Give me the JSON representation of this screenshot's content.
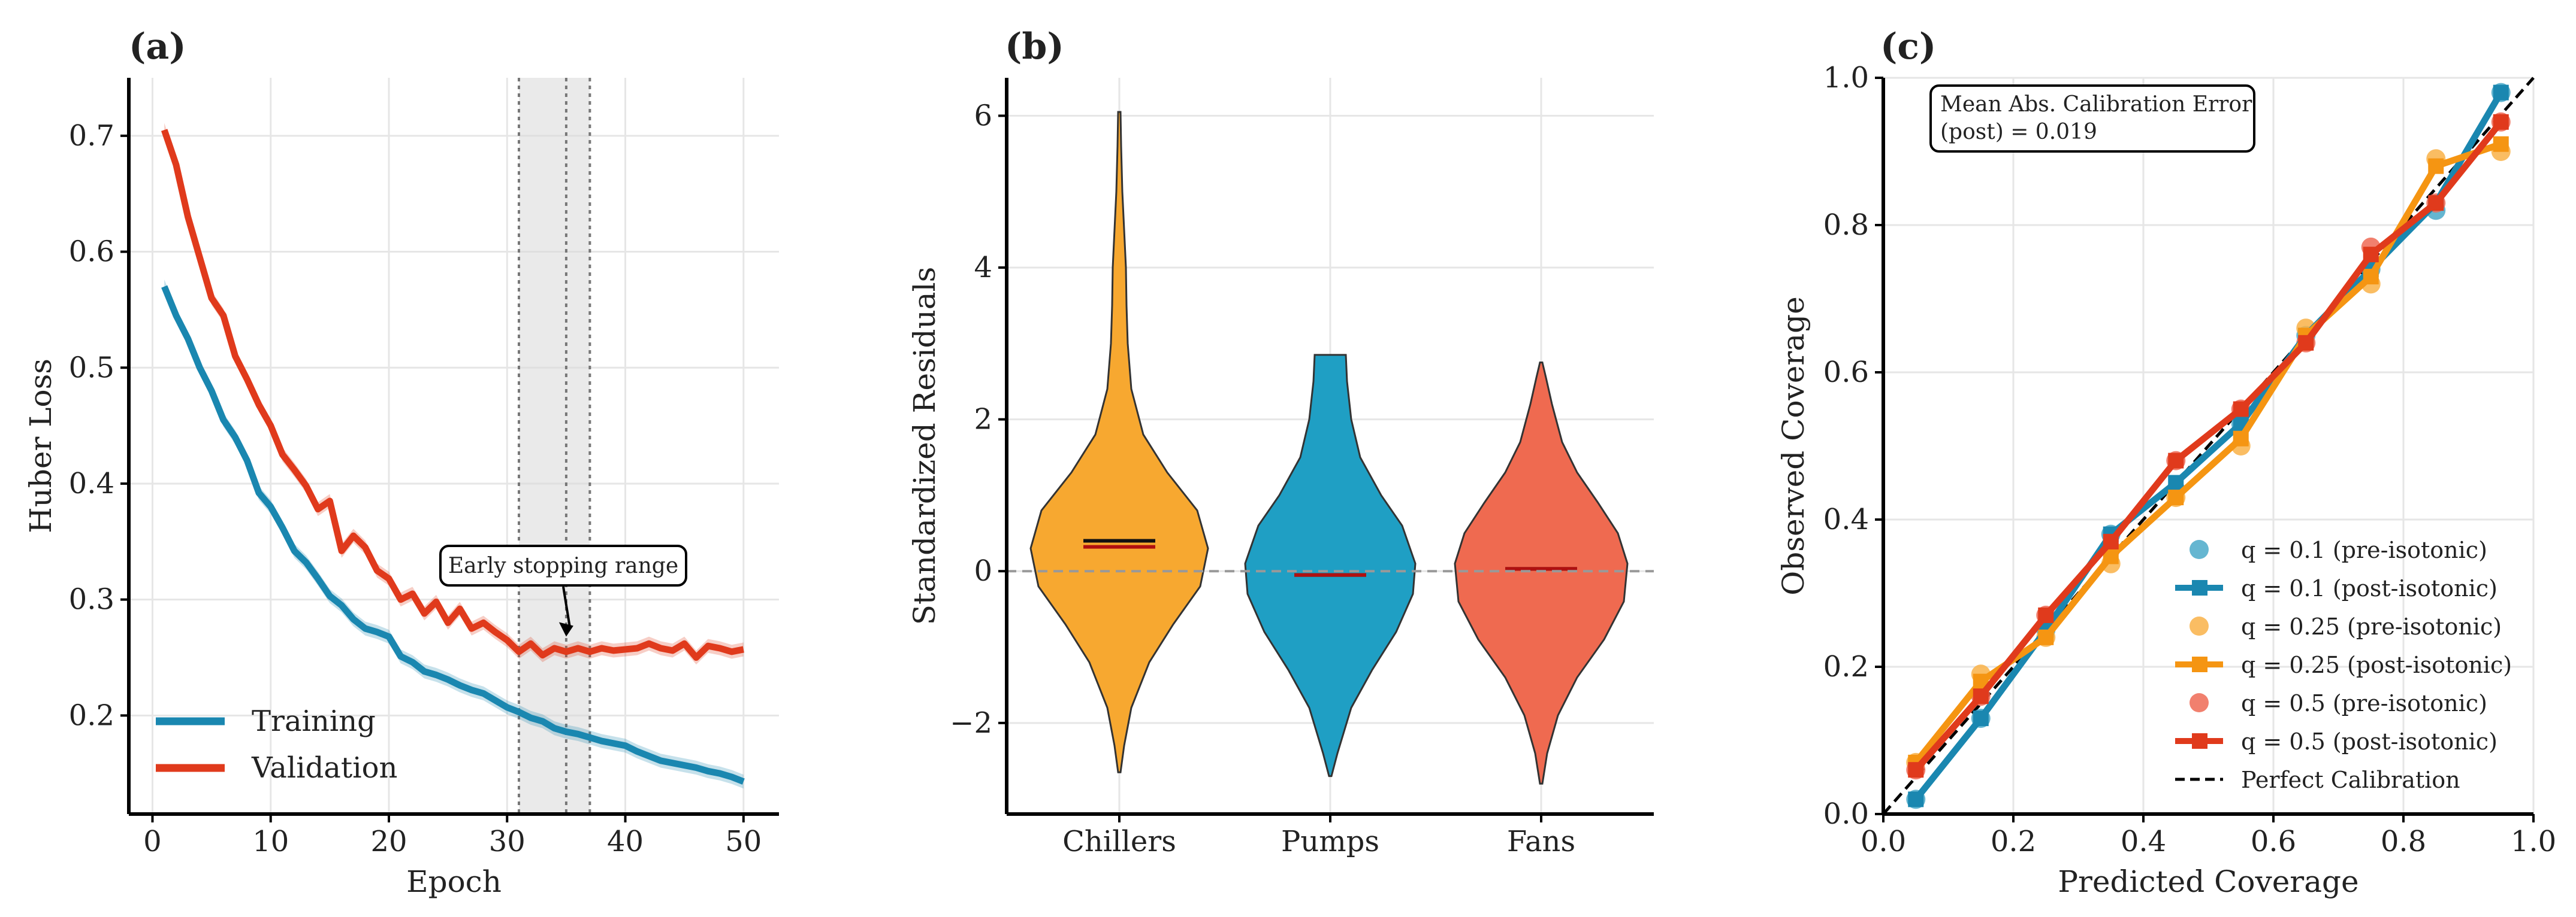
{
  "chart_data": [
    {
      "type": "line",
      "panel_label": "(a)",
      "xlabel": "Epoch",
      "ylabel": "Huber Loss",
      "xlim": [
        -2,
        53
      ],
      "ylim": [
        0.115,
        0.75
      ],
      "xticks": [
        0,
        10,
        20,
        30,
        40,
        50
      ],
      "yticks": [
        0.2,
        0.3,
        0.4,
        0.5,
        0.6,
        0.7
      ],
      "grid": true,
      "legend_position": "lower-left",
      "shaded_region": {
        "x_start": 31,
        "x_end": 37,
        "inner_lines": [
          31,
          35,
          37
        ]
      },
      "annotation": {
        "text": "Early stopping range",
        "point_x": 35,
        "point_y": 0.265
      },
      "series": [
        {
          "name": "Training",
          "color": "#1a87b0",
          "x": [
            1,
            2,
            3,
            4,
            5,
            6,
            7,
            8,
            9,
            10,
            11,
            12,
            13,
            14,
            15,
            16,
            17,
            18,
            19,
            20,
            21,
            22,
            23,
            24,
            25,
            26,
            27,
            28,
            29,
            30,
            31,
            32,
            33,
            34,
            35,
            36,
            37,
            38,
            39,
            40,
            41,
            42,
            43,
            44,
            45,
            46,
            47,
            48,
            49,
            50
          ],
          "y": [
            0.57,
            0.545,
            0.525,
            0.5,
            0.48,
            0.455,
            0.44,
            0.42,
            0.392,
            0.38,
            0.362,
            0.342,
            0.332,
            0.318,
            0.303,
            0.295,
            0.283,
            0.275,
            0.272,
            0.268,
            0.251,
            0.246,
            0.238,
            0.235,
            0.231,
            0.226,
            0.222,
            0.219,
            0.213,
            0.207,
            0.203,
            0.198,
            0.195,
            0.189,
            0.186,
            0.184,
            0.181,
            0.178,
            0.176,
            0.174,
            0.169,
            0.165,
            0.161,
            0.159,
            0.157,
            0.155,
            0.152,
            0.15,
            0.147,
            0.143
          ]
        },
        {
          "name": "Validation",
          "color": "#e03a1c",
          "x": [
            1,
            2,
            3,
            4,
            5,
            6,
            7,
            8,
            9,
            10,
            11,
            12,
            13,
            14,
            15,
            16,
            17,
            18,
            19,
            20,
            21,
            22,
            23,
            24,
            25,
            26,
            27,
            28,
            29,
            30,
            31,
            32,
            33,
            34,
            35,
            36,
            37,
            38,
            39,
            40,
            41,
            42,
            43,
            44,
            45,
            46,
            47,
            48,
            49,
            50
          ],
          "y": [
            0.705,
            0.675,
            0.63,
            0.595,
            0.56,
            0.545,
            0.51,
            0.49,
            0.468,
            0.45,
            0.425,
            0.412,
            0.398,
            0.378,
            0.385,
            0.342,
            0.355,
            0.345,
            0.325,
            0.318,
            0.3,
            0.305,
            0.288,
            0.298,
            0.28,
            0.292,
            0.275,
            0.28,
            0.272,
            0.265,
            0.255,
            0.262,
            0.252,
            0.258,
            0.255,
            0.258,
            0.255,
            0.258,
            0.256,
            0.257,
            0.258,
            0.262,
            0.258,
            0.256,
            0.262,
            0.25,
            0.26,
            0.258,
            0.255,
            0.257
          ]
        }
      ]
    },
    {
      "type": "violin",
      "panel_label": "(b)",
      "xlabel": "",
      "ylabel": "Standardized Residuals",
      "ylim": [
        -3.2,
        6.5
      ],
      "yticks": [
        -2,
        0,
        2,
        4,
        6
      ],
      "ytick_labels": [
        "−2",
        "0",
        "2",
        "4",
        "6"
      ],
      "grid": true,
      "reference_line_y": 0,
      "categories": [
        "Chillers",
        "Pumps",
        "Fans"
      ],
      "series": [
        {
          "name": "Chillers",
          "color": "#f7a830",
          "min": -2.65,
          "max": 6.05,
          "mean": 0.4,
          "median": 0.32
        },
        {
          "name": "Pumps",
          "color": "#1f9fc4",
          "min": -2.7,
          "max": 2.85,
          "mean": -0.05,
          "median": -0.05
        },
        {
          "name": "Fans",
          "color": "#ef6a50",
          "min": -2.8,
          "max": 2.75,
          "mean": 0.03,
          "median": 0.03
        }
      ]
    },
    {
      "type": "line",
      "panel_label": "(c)",
      "xlabel": "Predicted Coverage",
      "ylabel": "Observed Coverage",
      "xlim": [
        0.0,
        1.0
      ],
      "ylim": [
        0.0,
        1.0
      ],
      "xticks": [
        0.0,
        0.2,
        0.4,
        0.6,
        0.8,
        1.0
      ],
      "yticks": [
        0.0,
        0.2,
        0.4,
        0.6,
        0.8,
        1.0
      ],
      "grid": true,
      "legend_position": "lower-right",
      "annotation": {
        "text_line1": "Mean Abs. Calibration Error",
        "text_line2": "(post) = 0.019"
      },
      "reference_line": {
        "name": "Perfect Calibration",
        "x": [
          0,
          1
        ],
        "y": [
          0,
          1
        ]
      },
      "series": [
        {
          "name": "q = 0.1 (pre-isotonic)",
          "kind": "scatter",
          "color": "#4aa9c9",
          "x": [
            0.05,
            0.15,
            0.25,
            0.35,
            0.45,
            0.55,
            0.65,
            0.75,
            0.85,
            0.95
          ],
          "y": [
            0.02,
            0.13,
            0.25,
            0.38,
            0.44,
            0.53,
            0.65,
            0.74,
            0.82,
            0.98
          ]
        },
        {
          "name": "q = 0.1 (post-isotonic)",
          "kind": "line",
          "color": "#1a87b0",
          "x": [
            0.05,
            0.15,
            0.25,
            0.35,
            0.45,
            0.55,
            0.65,
            0.75,
            0.85,
            0.95
          ],
          "y": [
            0.02,
            0.13,
            0.25,
            0.38,
            0.45,
            0.53,
            0.65,
            0.74,
            0.83,
            0.98
          ]
        },
        {
          "name": "q = 0.25 (pre-isotonic)",
          "kind": "scatter",
          "color": "#f9b248",
          "x": [
            0.05,
            0.15,
            0.25,
            0.35,
            0.45,
            0.55,
            0.65,
            0.75,
            0.85,
            0.95
          ],
          "y": [
            0.07,
            0.19,
            0.24,
            0.34,
            0.43,
            0.5,
            0.66,
            0.72,
            0.89,
            0.9
          ]
        },
        {
          "name": "q = 0.25 (post-isotonic)",
          "kind": "line",
          "color": "#f59512",
          "x": [
            0.05,
            0.15,
            0.25,
            0.35,
            0.45,
            0.55,
            0.65,
            0.75,
            0.85,
            0.95
          ],
          "y": [
            0.07,
            0.18,
            0.24,
            0.35,
            0.43,
            0.51,
            0.65,
            0.73,
            0.88,
            0.91
          ]
        },
        {
          "name": "q = 0.5 (pre-isotonic)",
          "kind": "scatter",
          "color": "#ef6a55",
          "x": [
            0.05,
            0.15,
            0.25,
            0.35,
            0.45,
            0.55,
            0.65,
            0.75,
            0.85,
            0.95
          ],
          "y": [
            0.06,
            0.16,
            0.27,
            0.36,
            0.48,
            0.55,
            0.64,
            0.77,
            0.83,
            0.94
          ]
        },
        {
          "name": "q = 0.5 (post-isotonic)",
          "kind": "line",
          "color": "#e03a1c",
          "x": [
            0.05,
            0.15,
            0.25,
            0.35,
            0.45,
            0.55,
            0.65,
            0.75,
            0.85,
            0.95
          ],
          "y": [
            0.06,
            0.16,
            0.27,
            0.37,
            0.48,
            0.55,
            0.64,
            0.76,
            0.83,
            0.94
          ]
        }
      ]
    }
  ]
}
